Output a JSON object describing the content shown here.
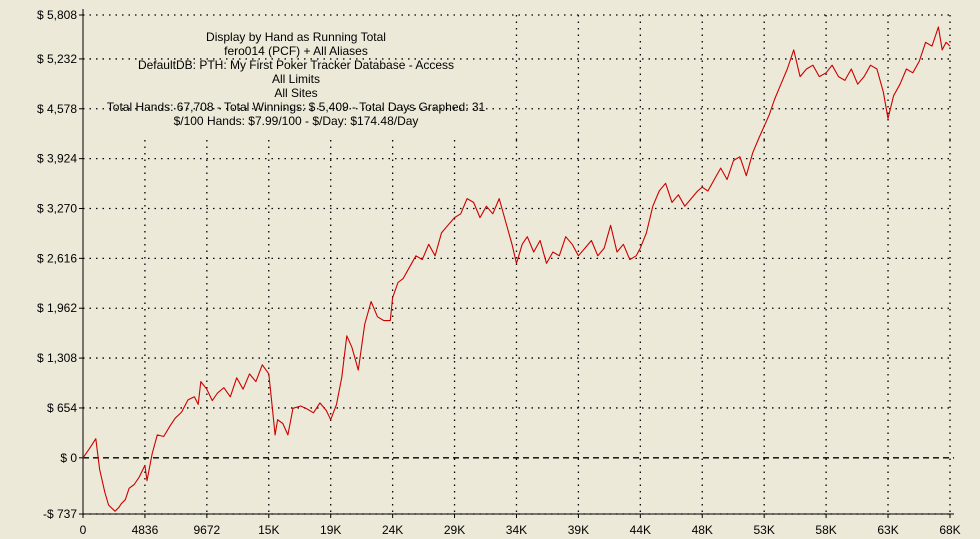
{
  "chart_data": {
    "type": "line",
    "title": "Display by Hand as Running Total",
    "info_lines": [
      "Display by Hand as Running Total",
      "fero014 (PCF) + All Aliases",
      "DefaultDB: PTH: My First Poker Tracker Database - Access",
      "All Limits",
      "All Sites",
      "Total Hands: 67,708 - Total Winnings: $ 5,409 - Total Days Graphed: 31",
      "$/100 Hands: $7.99/100 - $/Day: $174.48/Day"
    ],
    "xlabel": "",
    "ylabel": "",
    "xlim": [
      0,
      67708
    ],
    "ylim": [
      -737,
      5808
    ],
    "grid": true,
    "line_color": "#cc0000",
    "y_ticks": [
      {
        "value": 5808,
        "label": "$ 5,808"
      },
      {
        "value": 5232,
        "label": "$ 5,232"
      },
      {
        "value": 4578,
        "label": "$ 4,578"
      },
      {
        "value": 3924,
        "label": "$ 3,924"
      },
      {
        "value": 3270,
        "label": "$ 3,270"
      },
      {
        "value": 2616,
        "label": "$ 2,616"
      },
      {
        "value": 1962,
        "label": "$ 1,962"
      },
      {
        "value": 1308,
        "label": "$ 1,308"
      },
      {
        "value": 654,
        "label": "$ 654"
      },
      {
        "value": 0,
        "label": "$ 0"
      },
      {
        "value": -737,
        "label": "-$ 737"
      }
    ],
    "x_ticks": [
      {
        "value": 0,
        "label": "0"
      },
      {
        "value": 4836,
        "label": "4836"
      },
      {
        "value": 9672,
        "label": "9672"
      },
      {
        "value": 14508,
        "label": "15K"
      },
      {
        "value": 19344,
        "label": "19K"
      },
      {
        "value": 24180,
        "label": "24K"
      },
      {
        "value": 29016,
        "label": "29K"
      },
      {
        "value": 33852,
        "label": "34K"
      },
      {
        "value": 38688,
        "label": "39K"
      },
      {
        "value": 43524,
        "label": "44K"
      },
      {
        "value": 48360,
        "label": "48K"
      },
      {
        "value": 53196,
        "label": "53K"
      },
      {
        "value": 58032,
        "label": "58K"
      },
      {
        "value": 62868,
        "label": "63K"
      },
      {
        "value": 67708,
        "label": "68K"
      }
    ],
    "series": [
      {
        "x": [
          0,
          500,
          1000,
          1300,
          1700,
          2000,
          2500,
          2800,
          3000,
          3300,
          3600,
          4000,
          4400,
          4836,
          5000,
          5400,
          5800,
          6300,
          6800,
          7200,
          7700,
          8200,
          8700,
          9000,
          9200,
          9672,
          10100,
          10500,
          11000,
          11500,
          12000,
          12500,
          13000,
          13500,
          14000,
          14508,
          14700,
          15000,
          15200,
          15600,
          16000,
          16400,
          17000,
          17500,
          18000,
          18500,
          19000,
          19344,
          19800,
          20200,
          20600,
          21000,
          21500,
          22000,
          22500,
          23000,
          23500,
          24000,
          24180,
          24600,
          25000,
          25500,
          26000,
          26500,
          27000,
          27500,
          28000,
          28500,
          29016,
          29500,
          30000,
          30500,
          31000,
          31500,
          32000,
          32500,
          33000,
          33500,
          33852,
          34300,
          34700,
          35200,
          35700,
          36200,
          36700,
          37200,
          37700,
          38200,
          38688,
          39200,
          39700,
          40200,
          40700,
          41200,
          41700,
          42200,
          42700,
          43200,
          43524,
          44000,
          44500,
          45000,
          45500,
          46000,
          46500,
          47000,
          47500,
          48000,
          48360,
          48800,
          49300,
          49800,
          50300,
          50800,
          51300,
          51800,
          52300,
          52800,
          53196,
          53600,
          54000,
          54500,
          55000,
          55500,
          56000,
          56500,
          57000,
          57500,
          58032,
          58500,
          59000,
          59500,
          60000,
          60500,
          61000,
          61500,
          62000,
          62500,
          62868,
          63300,
          63800,
          64300,
          64800,
          65300,
          65800,
          66300,
          66800,
          67100,
          67400,
          67708
        ],
        "y": [
          0,
          120,
          250,
          -150,
          -450,
          -620,
          -700,
          -650,
          -600,
          -550,
          -400,
          -350,
          -250,
          -100,
          -300,
          50,
          300,
          280,
          420,
          520,
          600,
          760,
          800,
          700,
          1000,
          900,
          750,
          850,
          920,
          800,
          1050,
          900,
          1100,
          1000,
          1220,
          1100,
          800,
          300,
          500,
          450,
          300,
          650,
          680,
          640,
          590,
          720,
          620,
          500,
          700,
          1050,
          1600,
          1450,
          1150,
          1750,
          2050,
          1850,
          1800,
          1800,
          2100,
          2300,
          2350,
          2500,
          2650,
          2600,
          2800,
          2650,
          2950,
          3050,
          3150,
          3200,
          3400,
          3350,
          3150,
          3300,
          3200,
          3400,
          3100,
          2800,
          2550,
          2800,
          2900,
          2700,
          2850,
          2550,
          2700,
          2650,
          2900,
          2800,
          2650,
          2750,
          2850,
          2650,
          2750,
          3050,
          2700,
          2800,
          2600,
          2650,
          2750,
          2950,
          3300,
          3500,
          3600,
          3350,
          3450,
          3300,
          3400,
          3500,
          3550,
          3500,
          3650,
          3800,
          3650,
          3900,
          3950,
          3700,
          4000,
          4200,
          4350,
          4500,
          4700,
          4900,
          5100,
          5350,
          5000,
          5100,
          5150,
          5000,
          5050,
          5150,
          5000,
          4950,
          5100,
          4900,
          5000,
          5150,
          5100,
          4800,
          4450,
          4750,
          4900,
          5100,
          5050,
          5200,
          5450,
          5400,
          5650,
          5350,
          5450,
          5400
        ]
      }
    ]
  }
}
